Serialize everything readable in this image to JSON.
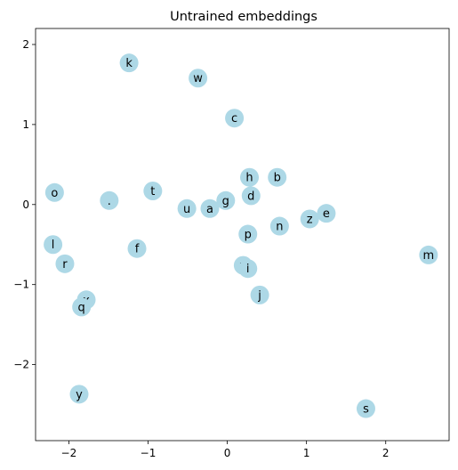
{
  "chart_data": {
    "type": "scatter",
    "title": "Untrained embeddings",
    "xlabel": "",
    "ylabel": "",
    "xlim": [
      -2.42,
      2.8
    ],
    "ylim": [
      -2.95,
      2.2
    ],
    "xticks": [
      -2,
      -1,
      0,
      1,
      2
    ],
    "yticks": [
      -2,
      -1,
      0,
      1,
      2
    ],
    "xtick_labels": [
      "−2",
      "−1",
      "0",
      "1",
      "2"
    ],
    "ytick_labels": [
      "−2",
      "−1",
      "0",
      "1",
      "2"
    ],
    "grid": false,
    "marker_color": "#add8e6",
    "points": [
      {
        "label": "k",
        "x": -1.24,
        "y": 1.77
      },
      {
        "label": "w",
        "x": -0.37,
        "y": 1.58
      },
      {
        "label": "c",
        "x": 0.09,
        "y": 1.08
      },
      {
        "label": "o",
        "x": -2.18,
        "y": 0.15
      },
      {
        "label": ".",
        "x": -1.49,
        "y": 0.05
      },
      {
        "label": "t",
        "x": -0.94,
        "y": 0.17
      },
      {
        "label": "u",
        "x": -0.51,
        "y": -0.05
      },
      {
        "label": "a",
        "x": -0.22,
        "y": -0.05
      },
      {
        "label": "g",
        "x": -0.02,
        "y": 0.05
      },
      {
        "label": "h",
        "x": 0.28,
        "y": 0.34
      },
      {
        "label": "d",
        "x": 0.3,
        "y": 0.11
      },
      {
        "label": "b",
        "x": 0.63,
        "y": 0.34
      },
      {
        "label": "p",
        "x": 0.26,
        "y": -0.37
      },
      {
        "label": "n",
        "x": 0.66,
        "y": -0.27
      },
      {
        "label": "z",
        "x": 1.04,
        "y": -0.18
      },
      {
        "label": "e",
        "x": 1.25,
        "y": -0.11
      },
      {
        "label": "m",
        "x": 2.54,
        "y": -0.63
      },
      {
        "label": "l",
        "x": -2.2,
        "y": -0.5
      },
      {
        "label": "r",
        "x": -2.05,
        "y": -0.74
      },
      {
        "label": "f",
        "x": -1.14,
        "y": -0.55
      },
      {
        "label": "v",
        "x": 0.2,
        "y": -0.76
      },
      {
        "label": "i",
        "x": 0.26,
        "y": -0.8
      },
      {
        "label": "j",
        "x": 0.41,
        "y": -1.13
      },
      {
        "label": "x",
        "x": -1.78,
        "y": -1.19
      },
      {
        "label": "q",
        "x": -1.84,
        "y": -1.28
      },
      {
        "label": "y",
        "x": -1.87,
        "y": -2.37
      },
      {
        "label": "s",
        "x": 1.75,
        "y": -2.55
      }
    ]
  }
}
